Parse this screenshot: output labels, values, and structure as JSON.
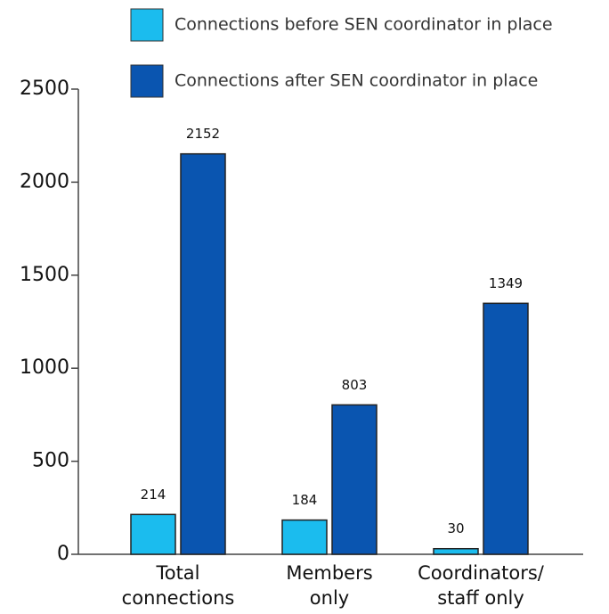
{
  "chart_data": {
    "type": "bar",
    "categories": [
      "Total\nconnections",
      "Members\nonly",
      "Coordinators/\nstaff only"
    ],
    "series": [
      {
        "name": "Connections before SEN coordinator in place",
        "color": "#1bbcee",
        "values": [
          214,
          184,
          30
        ]
      },
      {
        "name": "Connections after SEN coordinator in place",
        "color": "#0a55b0",
        "values": [
          2152,
          803,
          1349
        ]
      }
    ],
    "ylim": [
      0,
      2500
    ],
    "yticks": [
      0,
      500,
      1000,
      1500,
      2000,
      2500
    ],
    "grid": false,
    "legend": "top"
  }
}
